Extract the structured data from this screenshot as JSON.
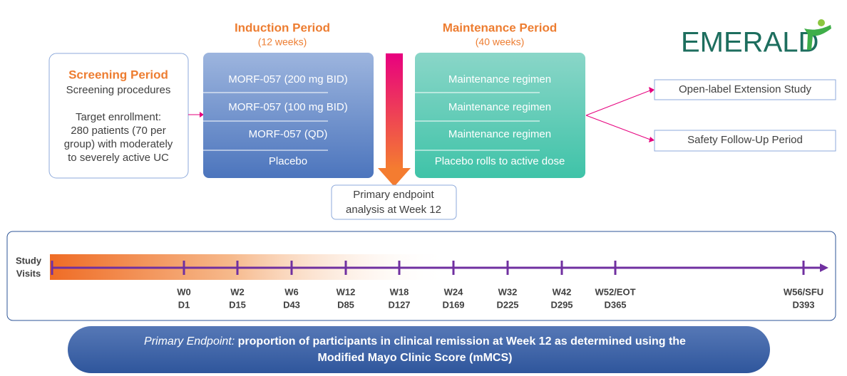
{
  "logo": "EMERALD",
  "screening": {
    "title": "Screening Period",
    "lines": [
      "Screening procedures",
      "Target enrollment:",
      "280 patients (70 per",
      "group) with moderately",
      "to severely active UC"
    ]
  },
  "induction": {
    "title": "Induction Period",
    "subtitle": "(12 weeks)",
    "arms": [
      "MORF-057 (200 mg BID)",
      "MORF-057 (100 mg BID)",
      "MORF-057 (QD)",
      "Placebo"
    ]
  },
  "maintenance": {
    "title": "Maintenance Period",
    "subtitle": "(40 weeks)",
    "arms": [
      "Maintenance regimen",
      "Maintenance regimen",
      "Maintenance regimen",
      "Placebo rolls to active dose"
    ]
  },
  "endpoint_box": {
    "lines": [
      "Primary endpoint",
      "analysis at Week 12"
    ]
  },
  "extension": [
    "Open-label Extension Study",
    "Safety Follow-Up Period"
  ],
  "timeline": {
    "label": [
      "Study",
      "Visits"
    ],
    "visits": [
      {
        "week": "W0",
        "day": "D1"
      },
      {
        "week": "W2",
        "day": "D15"
      },
      {
        "week": "W6",
        "day": "D43"
      },
      {
        "week": "W12",
        "day": "D85"
      },
      {
        "week": "W18",
        "day": "D127"
      },
      {
        "week": "W24",
        "day": "D169"
      },
      {
        "week": "W32",
        "day": "D225"
      },
      {
        "week": "W42",
        "day": "D295"
      },
      {
        "week": "W52/EOT",
        "day": "D365"
      },
      {
        "week": "W56/SFU",
        "day": "D393"
      }
    ]
  },
  "primary_endpoint": {
    "label": "Primary Endpoint:",
    "lines": [
      "proportion of participants in clinical remission at Week 12 as determined using the",
      "Modified Mayo Clinic Score (mMCS)"
    ]
  }
}
